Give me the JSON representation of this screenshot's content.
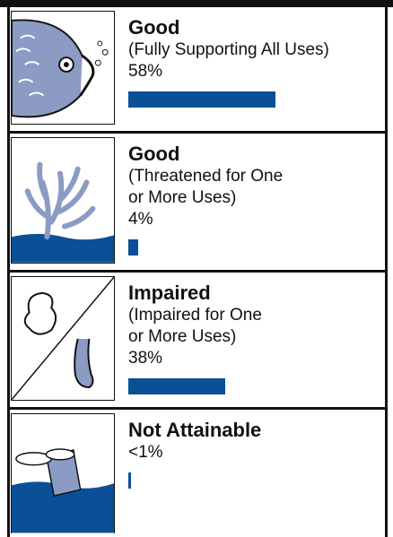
{
  "rows": [
    {
      "title": "Good",
      "subtitle": [
        "(Fully Supporting All Uses)"
      ],
      "value_label": "58%",
      "value": 58
    },
    {
      "title": "Good",
      "subtitle": [
        "(Threatened for One",
        "or More Uses)"
      ],
      "value_label": "4%",
      "value": 4
    },
    {
      "title": "Impaired",
      "subtitle": [
        "(Impaired for One",
        "or More Uses)"
      ],
      "value_label": "38%",
      "value": 38
    },
    {
      "title": "Not Attainable",
      "subtitle": [],
      "value_label": "<1%",
      "value": 0.9
    }
  ]
}
